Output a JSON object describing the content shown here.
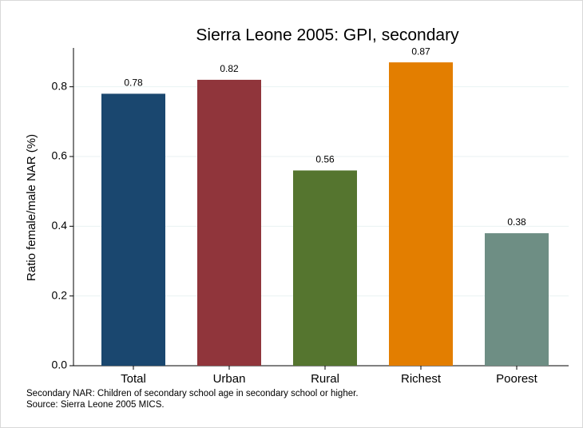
{
  "chart_data": {
    "type": "bar",
    "title": "Sierra Leone 2005: GPI, secondary",
    "y_label": "Ratio female/male NAR (%)",
    "categories": [
      "Total",
      "Urban",
      "Rural",
      "Richest",
      "Poorest"
    ],
    "values": [
      0.78,
      0.82,
      0.56,
      0.87,
      0.38
    ],
    "colors": [
      "#1a476f",
      "#90353b",
      "#55752f",
      "#e37e00",
      "#6e8e84"
    ],
    "ylim": [
      0,
      0.9
    ],
    "yticks": [
      {
        "value": 0,
        "label": "0.0"
      },
      0.2,
      0.4,
      0.6,
      0.8
    ],
    "grid": true,
    "notes": [
      "Secondary NAR: Children of secondary school age in secondary school or higher.",
      "Source: Sierra Leone 2005 MICS."
    ]
  }
}
